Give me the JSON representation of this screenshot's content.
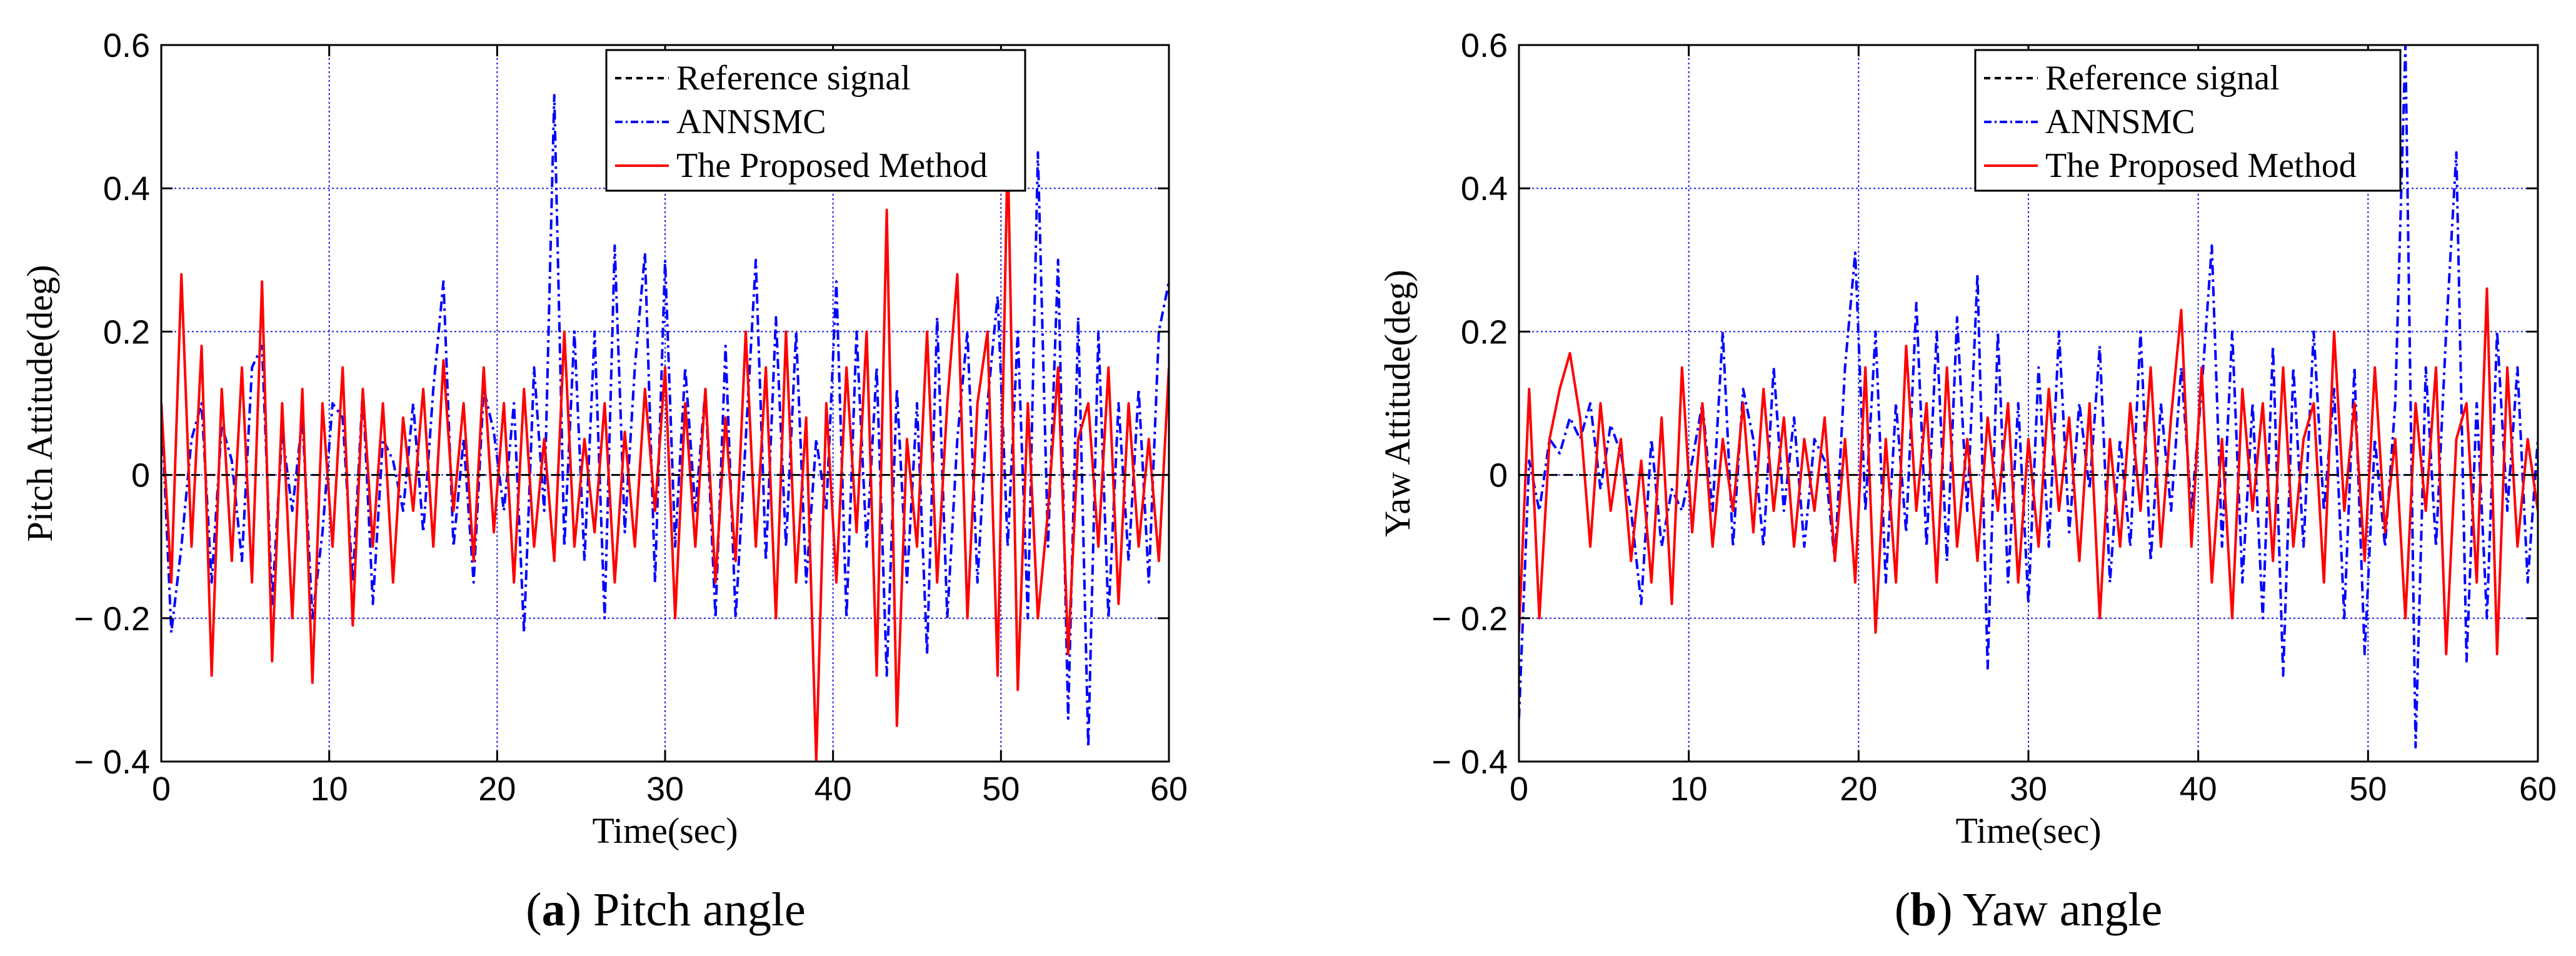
{
  "chart_data": [
    {
      "type": "line",
      "id": "a",
      "xlabel": "Time(sec)",
      "ylabel": "Pitch Attitude(deg)",
      "xlim": [
        0,
        60
      ],
      "ylim": [
        -0.4,
        0.6
      ],
      "xticks": [
        0,
        10,
        20,
        30,
        40,
        50,
        60
      ],
      "xtick_labels": [
        "0",
        "10",
        "20",
        "30",
        "40",
        "50",
        "60"
      ],
      "yticks": [
        -0.4,
        -0.2,
        0,
        0.2,
        0.4,
        0.6
      ],
      "ytick_labels": [
        "− 0.4",
        "− 0.2",
        "0",
        "0.2",
        "0.4",
        "0.6"
      ],
      "grid": true,
      "legend_position": "top-right",
      "caption_tag": "a",
      "caption_text": "Pitch angle",
      "legend": [
        "Reference signal",
        "ANNSMC",
        "The Proposed Method"
      ],
      "series": [
        {
          "name": "Reference signal",
          "color": "#000000",
          "style": "dashed",
          "x": [
            0,
            60
          ],
          "y": [
            0,
            0
          ]
        },
        {
          "name": "ANNSMC",
          "color": "#0000ff",
          "style": "dashdot",
          "x": [
            0,
            0.6,
            1.2,
            1.8,
            2.4,
            3,
            3.6,
            4.2,
            4.8,
            5.4,
            6,
            6.6,
            7.2,
            7.8,
            8.4,
            9,
            9.6,
            10.2,
            10.8,
            11.4,
            12,
            12.6,
            13.2,
            13.8,
            14.4,
            15,
            15.6,
            16.2,
            16.8,
            17.4,
            18,
            18.6,
            19.2,
            19.8,
            20.4,
            21,
            21.6,
            22.2,
            22.8,
            23.4,
            24,
            24.6,
            25.2,
            25.8,
            26.4,
            27,
            27.6,
            28.2,
            28.8,
            29.4,
            30,
            30.6,
            31.2,
            31.8,
            32.4,
            33,
            33.6,
            34.2,
            34.8,
            35.4,
            36,
            36.6,
            37.2,
            37.8,
            38.4,
            39,
            39.6,
            40.2,
            40.8,
            41.4,
            42,
            42.6,
            43.2,
            43.8,
            44.4,
            45,
            45.6,
            46.2,
            46.8,
            47.4,
            48,
            48.6,
            49.2,
            49.8,
            50.4,
            51,
            51.6,
            52.2,
            52.8,
            53.4,
            54,
            54.6,
            55.2,
            55.8,
            56.4,
            57,
            57.6,
            58.2,
            58.8,
            59.4,
            60
          ],
          "y": [
            0.1,
            -0.22,
            -0.1,
            0.05,
            0.1,
            -0.15,
            0.07,
            0.02,
            -0.12,
            0.15,
            0.18,
            -0.18,
            0.06,
            -0.05,
            0.08,
            -0.2,
            -0.08,
            0.1,
            0.08,
            -0.15,
            0.12,
            -0.18,
            0.05,
            0.02,
            -0.05,
            0.1,
            -0.08,
            0.12,
            0.27,
            -0.1,
            0.05,
            -0.15,
            0.12,
            0.06,
            -0.05,
            0.1,
            -0.22,
            0.15,
            -0.05,
            0.53,
            -0.1,
            0.2,
            -0.12,
            0.2,
            -0.2,
            0.32,
            -0.08,
            0.15,
            0.31,
            -0.15,
            0.3,
            -0.1,
            0.15,
            -0.05,
            0.12,
            -0.2,
            0.18,
            -0.2,
            0.05,
            0.3,
            -0.12,
            0.22,
            -0.1,
            0.2,
            -0.15,
            0.05,
            -0.05,
            0.27,
            -0.2,
            0.2,
            -0.1,
            0.15,
            -0.28,
            0.12,
            -0.15,
            0.1,
            -0.25,
            0.22,
            -0.2,
            0.05,
            0.2,
            -0.15,
            0.1,
            0.25,
            -0.1,
            0.2,
            -0.2,
            0.45,
            -0.1,
            0.3,
            -0.34,
            0.22,
            -0.38,
            0.2,
            -0.2,
            0.1,
            -0.12,
            0.12,
            -0.15,
            0.2,
            0.27
          ]
        },
        {
          "name": "The Proposed Method",
          "color": "#ff0000",
          "style": "solid",
          "x": [
            0,
            0.6,
            1.2,
            1.8,
            2.4,
            3,
            3.6,
            4.2,
            4.8,
            5.4,
            6,
            6.6,
            7.2,
            7.8,
            8.4,
            9,
            9.6,
            10.2,
            10.8,
            11.4,
            12,
            12.6,
            13.2,
            13.8,
            14.4,
            15,
            15.6,
            16.2,
            16.8,
            17.4,
            18,
            18.6,
            19.2,
            19.8,
            20.4,
            21,
            21.6,
            22.2,
            22.8,
            23.4,
            24,
            24.6,
            25.2,
            25.8,
            26.4,
            27,
            27.6,
            28.2,
            28.8,
            29.4,
            30,
            30.6,
            31.2,
            31.8,
            32.4,
            33,
            33.6,
            34.2,
            34.8,
            35.4,
            36,
            36.6,
            37.2,
            37.8,
            38.4,
            39,
            39.6,
            40.2,
            40.8,
            41.4,
            42,
            42.6,
            43.2,
            43.8,
            44.4,
            45,
            45.6,
            46.2,
            46.8,
            47.4,
            48,
            48.6,
            49.2,
            49.8,
            50.4,
            51,
            51.6,
            52.2,
            52.8,
            53.4,
            54,
            54.6,
            55.2,
            55.8,
            56.4,
            57,
            57.6,
            58.2,
            58.8,
            59.4,
            60
          ],
          "y": [
            0.1,
            -0.15,
            0.28,
            -0.1,
            0.18,
            -0.28,
            0.12,
            -0.12,
            0.15,
            -0.15,
            0.27,
            -0.26,
            0.1,
            -0.2,
            0.12,
            -0.29,
            0.1,
            -0.1,
            0.15,
            -0.21,
            0.12,
            -0.1,
            0.1,
            -0.15,
            0.08,
            -0.05,
            0.12,
            -0.1,
            0.16,
            -0.05,
            0.1,
            -0.12,
            0.15,
            -0.08,
            0.1,
            -0.15,
            0.12,
            -0.1,
            0.05,
            -0.12,
            0.2,
            -0.1,
            0.05,
            -0.08,
            0.1,
            -0.15,
            0.06,
            -0.1,
            0.12,
            -0.05,
            0.15,
            -0.2,
            0.1,
            -0.1,
            0.12,
            -0.15,
            0.08,
            -0.12,
            0.2,
            -0.1,
            0.15,
            -0.2,
            0.2,
            -0.15,
            0.08,
            -0.4,
            0.1,
            -0.15,
            0.15,
            -0.08,
            0.2,
            -0.28,
            0.37,
            -0.35,
            0.05,
            -0.1,
            0.2,
            -0.15,
            0.1,
            0.28,
            -0.2,
            0.1,
            0.2,
            -0.28,
            0.46,
            -0.3,
            0.1,
            -0.2,
            -0.05,
            0.15,
            -0.25,
            0.05,
            0.1,
            -0.1,
            0.15,
            -0.18,
            0.1,
            -0.1,
            0.05,
            -0.12,
            0.15
          ]
        }
      ]
    },
    {
      "type": "line",
      "id": "b",
      "xlabel": "Time(sec)",
      "ylabel": "Yaw Attitude(deg)",
      "xlim": [
        0,
        60
      ],
      "ylim": [
        -0.4,
        0.6
      ],
      "xticks": [
        0,
        10,
        20,
        30,
        40,
        50,
        60
      ],
      "xtick_labels": [
        "0",
        "10",
        "20",
        "30",
        "40",
        "50",
        "60"
      ],
      "yticks": [
        -0.4,
        -0.2,
        0,
        0.2,
        0.4,
        0.6
      ],
      "ytick_labels": [
        "− 0.4",
        "− 0.2",
        "0",
        "0.2",
        "0.4",
        "0.6"
      ],
      "grid": true,
      "legend_position": "top-right",
      "caption_tag": "b",
      "caption_text": "Yaw angle",
      "legend": [
        "Reference signal",
        "ANNSMC",
        "The Proposed Method"
      ],
      "series": [
        {
          "name": "Reference signal",
          "color": "#000000",
          "style": "dashed",
          "x": [
            0,
            60
          ],
          "y": [
            0,
            0
          ]
        },
        {
          "name": "ANNSMC",
          "color": "#0000ff",
          "style": "dashdot",
          "x": [
            0,
            0.6,
            1.2,
            1.8,
            2.4,
            3,
            3.6,
            4.2,
            4.8,
            5.4,
            6,
            6.6,
            7.2,
            7.8,
            8.4,
            9,
            9.6,
            10.2,
            10.8,
            11.4,
            12,
            12.6,
            13.2,
            13.8,
            14.4,
            15,
            15.6,
            16.2,
            16.8,
            17.4,
            18,
            18.6,
            19.2,
            19.8,
            20.4,
            21,
            21.6,
            22.2,
            22.8,
            23.4,
            24,
            24.6,
            25.2,
            25.8,
            26.4,
            27,
            27.6,
            28.2,
            28.8,
            29.4,
            30,
            30.6,
            31.2,
            31.8,
            32.4,
            33,
            33.6,
            34.2,
            34.8,
            35.4,
            36,
            36.6,
            37.2,
            37.8,
            38.4,
            39,
            39.6,
            40.2,
            40.8,
            41.4,
            42,
            42.6,
            43.2,
            43.8,
            44.4,
            45,
            45.6,
            46.2,
            46.8,
            47.4,
            48,
            48.6,
            49.2,
            49.8,
            50.4,
            51,
            51.6,
            52.2,
            52.8,
            53.4,
            54,
            54.6,
            55.2,
            55.8,
            56.4,
            57,
            57.6,
            58.2,
            58.8,
            59.4,
            60
          ],
          "y": [
            -0.34,
            0.02,
            -0.05,
            0.05,
            0.03,
            0.08,
            0.05,
            0.1,
            -0.02,
            0.07,
            0.03,
            -0.05,
            -0.18,
            0.05,
            -0.1,
            -0.02,
            -0.05,
            0.02,
            0.1,
            -0.05,
            0.2,
            -0.1,
            0.12,
            0.05,
            -0.1,
            0.15,
            -0.05,
            0.08,
            -0.1,
            0.05,
            0.02,
            -0.12,
            0.15,
            0.31,
            -0.05,
            0.2,
            -0.15,
            0.1,
            -0.08,
            0.24,
            -0.1,
            0.2,
            -0.12,
            0.22,
            -0.05,
            0.28,
            -0.27,
            0.2,
            -0.15,
            0.1,
            -0.18,
            0.15,
            -0.1,
            0.2,
            -0.08,
            0.1,
            -0.02,
            0.18,
            -0.15,
            0.05,
            -0.1,
            0.2,
            -0.12,
            0.1,
            -0.05,
            0.15,
            -0.05,
            0.12,
            0.32,
            -0.1,
            0.2,
            -0.15,
            0.1,
            -0.2,
            0.18,
            -0.28,
            0.15,
            -0.1,
            0.2,
            -0.05,
            0.12,
            -0.2,
            0.15,
            -0.25,
            0.05,
            -0.1,
            0.1,
            0.6,
            -0.38,
            0.15,
            -0.1,
            0.2,
            0.45,
            -0.26,
            0.1,
            -0.2,
            0.2,
            -0.05,
            0.15,
            -0.15,
            0.05
          ]
        },
        {
          "name": "The Proposed Method",
          "color": "#ff0000",
          "style": "solid",
          "x": [
            0,
            0.6,
            1.2,
            1.8,
            2.4,
            3,
            3.6,
            4.2,
            4.8,
            5.4,
            6,
            6.6,
            7.2,
            7.8,
            8.4,
            9,
            9.6,
            10.2,
            10.8,
            11.4,
            12,
            12.6,
            13.2,
            13.8,
            14.4,
            15,
            15.6,
            16.2,
            16.8,
            17.4,
            18,
            18.6,
            19.2,
            19.8,
            20.4,
            21,
            21.6,
            22.2,
            22.8,
            23.4,
            24,
            24.6,
            25.2,
            25.8,
            26.4,
            27,
            27.6,
            28.2,
            28.8,
            29.4,
            30,
            30.6,
            31.2,
            31.8,
            32.4,
            33,
            33.6,
            34.2,
            34.8,
            35.4,
            36,
            36.6,
            37.2,
            37.8,
            38.4,
            39,
            39.6,
            40.2,
            40.8,
            41.4,
            42,
            42.6,
            43.2,
            43.8,
            44.4,
            45,
            45.6,
            46.2,
            46.8,
            47.4,
            48,
            48.6,
            49.2,
            49.8,
            50.4,
            51,
            51.6,
            52.2,
            52.8,
            53.4,
            54,
            54.6,
            55.2,
            55.8,
            56.4,
            57,
            57.6,
            58.2,
            58.8,
            59.4,
            60
          ],
          "y": [
            -0.22,
            0.12,
            -0.2,
            0.05,
            0.12,
            0.17,
            0.08,
            -0.1,
            0.1,
            -0.05,
            0.05,
            -0.12,
            0.02,
            -0.15,
            0.08,
            -0.18,
            0.15,
            -0.08,
            0.1,
            -0.1,
            0.05,
            -0.05,
            0.1,
            -0.08,
            0.12,
            -0.05,
            0.08,
            -0.1,
            0.05,
            -0.05,
            0.08,
            -0.12,
            0.05,
            -0.15,
            0.15,
            -0.22,
            0.05,
            -0.15,
            0.18,
            -0.05,
            0.1,
            -0.15,
            0.15,
            -0.1,
            0.05,
            -0.12,
            0.08,
            -0.05,
            0.1,
            -0.15,
            0.05,
            -0.1,
            0.12,
            -0.05,
            0.08,
            -0.12,
            0.1,
            -0.2,
            0.05,
            -0.1,
            0.1,
            -0.05,
            0.15,
            -0.1,
            0.08,
            0.23,
            -0.1,
            0.15,
            -0.15,
            0.05,
            -0.2,
            0.12,
            -0.05,
            0.1,
            -0.12,
            0.15,
            -0.1,
            0.05,
            0.1,
            -0.15,
            0.2,
            -0.05,
            0.1,
            -0.12,
            0.15,
            -0.08,
            0.05,
            -0.2,
            0.1,
            -0.05,
            0.15,
            -0.25,
            0.05,
            0.1,
            -0.15,
            0.26,
            -0.25,
            0.15,
            -0.1,
            0.05,
            -0.05
          ]
        }
      ]
    }
  ]
}
